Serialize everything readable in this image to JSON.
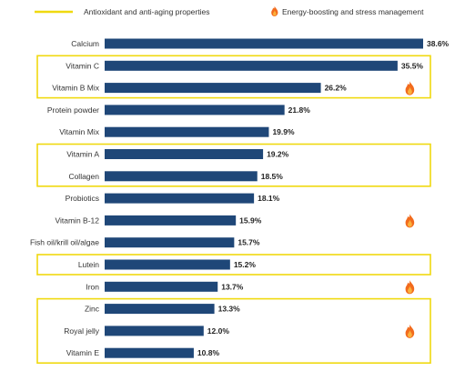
{
  "legend": {
    "items": [
      {
        "label": "Antioxidant and anti-aging properties",
        "icon": "yellow-line"
      },
      {
        "label": "Energy-boosting and stress management",
        "icon": "flame-icon"
      }
    ]
  },
  "colors": {
    "bar": "#1f4778",
    "highlight_box": "#f0d90f",
    "flame_outer": "#f26b1d",
    "flame_inner": "#fbb03b"
  },
  "chart_data": {
    "type": "bar",
    "orientation": "horizontal",
    "categories": [
      "Calcium",
      "Vitamin C",
      "Vitamin B Mix",
      "Protein powder",
      "Vitamin Mix",
      "Vitamin A",
      "Collagen",
      "Probiotics",
      "Vitamin B-12",
      "Fish oil/krill oil/algae",
      "Lutein",
      "Iron",
      "Zinc",
      "Royal jelly",
      "Vitamin E"
    ],
    "values": [
      38.6,
      35.5,
      26.2,
      21.8,
      19.9,
      19.2,
      18.5,
      18.1,
      15.9,
      15.7,
      15.2,
      13.7,
      13.3,
      12.0,
      10.8
    ],
    "data_labels": [
      "38.6%",
      "35.5%",
      "26.2%",
      "21.8%",
      "19.9%",
      "19.2%",
      "18.5%",
      "18.1%",
      "15.9%",
      "15.7%",
      "15.2%",
      "13.7%",
      "13.3%",
      "12.0%",
      "10.8%"
    ],
    "xlim": [
      0,
      38.6
    ],
    "highlight_groups": [
      {
        "legend": "Antioxidant and anti-aging properties",
        "categories": [
          "Vitamin C",
          "Vitamin B Mix"
        ]
      },
      {
        "legend": "Antioxidant and anti-aging properties",
        "categories": [
          "Vitamin A",
          "Collagen"
        ]
      },
      {
        "legend": "Antioxidant and anti-aging properties",
        "categories": [
          "Lutein"
        ]
      },
      {
        "legend": "Antioxidant and anti-aging properties",
        "categories": [
          "Zinc",
          "Royal jelly",
          "Vitamin E"
        ]
      }
    ],
    "flame_markers": [
      "Vitamin B Mix",
      "Vitamin B-12",
      "Iron",
      "Royal jelly"
    ],
    "grid": false,
    "legend_position": "top-left"
  }
}
